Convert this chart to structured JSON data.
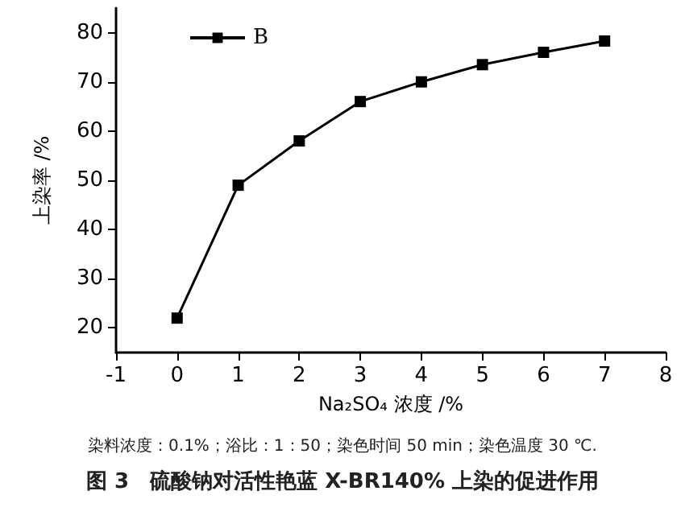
{
  "chart_data": {
    "type": "line",
    "title": "图 3　硫酸钠对活性艳蓝 X-BR140% 上染的促进作用",
    "xlabel": "Na₂SO₄ 浓度 /%",
    "ylabel": "上染率 /%",
    "annotations": [
      "染料浓度：0.1%；浴比：1：50；染色时间 50 min；染色温度 30 ℃."
    ],
    "x": [
      0,
      1,
      2,
      3,
      4,
      5,
      6,
      7
    ],
    "series": [
      {
        "name": "B",
        "color": "#000000",
        "values": [
          22,
          49,
          58,
          66,
          70,
          73.5,
          76,
          78.3
        ]
      }
    ],
    "xlim": [
      -1,
      8
    ],
    "xticks": [
      -1,
      0,
      1,
      2,
      3,
      4,
      5,
      6,
      7,
      8
    ],
    "ylim": [
      15,
      85
    ],
    "yticks": [
      20,
      30,
      40,
      50,
      60,
      70,
      80
    ],
    "grid": false,
    "legend": "top left",
    "marker": "square",
    "line_style": "solid"
  }
}
